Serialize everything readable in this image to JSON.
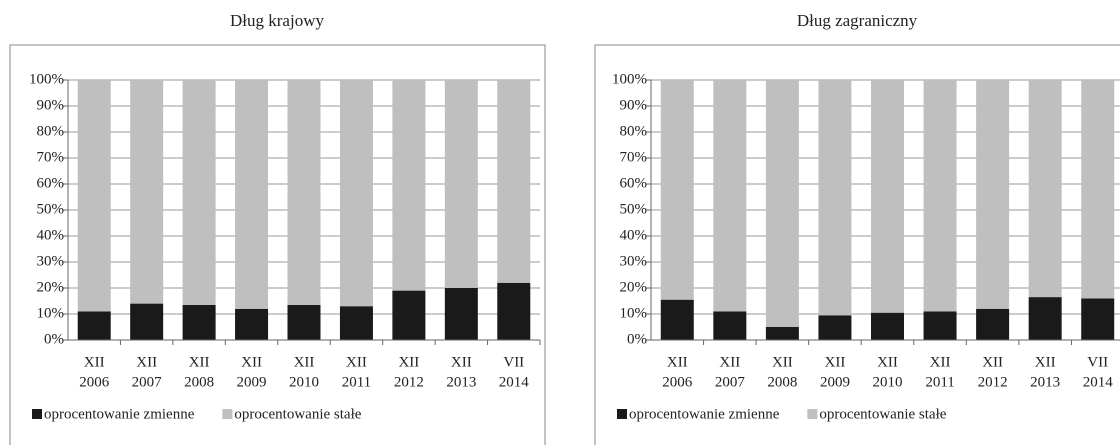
{
  "chart_data": [
    {
      "type": "stacked_bar",
      "title": "Dług krajowy",
      "categories": [
        [
          "XII",
          "2006"
        ],
        [
          "XII",
          "2007"
        ],
        [
          "XII",
          "2008"
        ],
        [
          "XII",
          "2009"
        ],
        [
          "XII",
          "2010"
        ],
        [
          "XII",
          "2011"
        ],
        [
          "XII",
          "2012"
        ],
        [
          "XII",
          "2013"
        ],
        [
          "VII",
          "2014"
        ]
      ],
      "series": [
        {
          "name": "oprocentowanie zmienne",
          "color": "#1a1a1a",
          "values": [
            11,
            14,
            13.5,
            12,
            13.5,
            13,
            19,
            20,
            22
          ]
        },
        {
          "name": "oprocentowanie stałe",
          "color": "#bfbfbf",
          "values": [
            89,
            86,
            86.5,
            88,
            86.5,
            87,
            81,
            80,
            78
          ]
        }
      ],
      "ylim": [
        0,
        100
      ],
      "yticks": [
        {
          "value": 0,
          "label": "0%"
        },
        {
          "value": 10,
          "label": "10%"
        },
        {
          "value": 20,
          "label": "20%"
        },
        {
          "value": 30,
          "label": "30%"
        },
        {
          "value": 40,
          "label": "40%"
        },
        {
          "value": 50,
          "label": "50%"
        },
        {
          "value": 60,
          "label": "60%"
        },
        {
          "value": 70,
          "label": "70%"
        },
        {
          "value": 80,
          "label": "80%"
        },
        {
          "value": 90,
          "label": "90%"
        },
        {
          "value": 100,
          "label": "100%"
        }
      ],
      "grid": true
    },
    {
      "type": "stacked_bar",
      "title": "Dług zagraniczny",
      "categories": [
        [
          "XII",
          "2006"
        ],
        [
          "XII",
          "2007"
        ],
        [
          "XII",
          "2008"
        ],
        [
          "XII",
          "2009"
        ],
        [
          "XII",
          "2010"
        ],
        [
          "XII",
          "2011"
        ],
        [
          "XII",
          "2012"
        ],
        [
          "XII",
          "2013"
        ],
        [
          "VII",
          "2014"
        ]
      ],
      "series": [
        {
          "name": "oprocentowanie zmienne",
          "color": "#1a1a1a",
          "values": [
            15.5,
            11,
            5,
            9.5,
            10.5,
            11,
            12,
            16.5,
            16
          ]
        },
        {
          "name": "oprocentowanie stałe",
          "color": "#bfbfbf",
          "values": [
            84.5,
            89,
            95,
            90.5,
            89.5,
            89,
            88,
            83.5,
            84
          ]
        }
      ],
      "ylim": [
        0,
        100
      ],
      "yticks": [
        {
          "value": 0,
          "label": "0%"
        },
        {
          "value": 10,
          "label": "10%"
        },
        {
          "value": 20,
          "label": "20%"
        },
        {
          "value": 30,
          "label": "30%"
        },
        {
          "value": 40,
          "label": "40%"
        },
        {
          "value": 50,
          "label": "50%"
        },
        {
          "value": 60,
          "label": "60%"
        },
        {
          "value": 70,
          "label": "70%"
        },
        {
          "value": 80,
          "label": "80%"
        },
        {
          "value": 90,
          "label": "90%"
        },
        {
          "value": 100,
          "label": "100%"
        }
      ],
      "grid": true
    }
  ]
}
